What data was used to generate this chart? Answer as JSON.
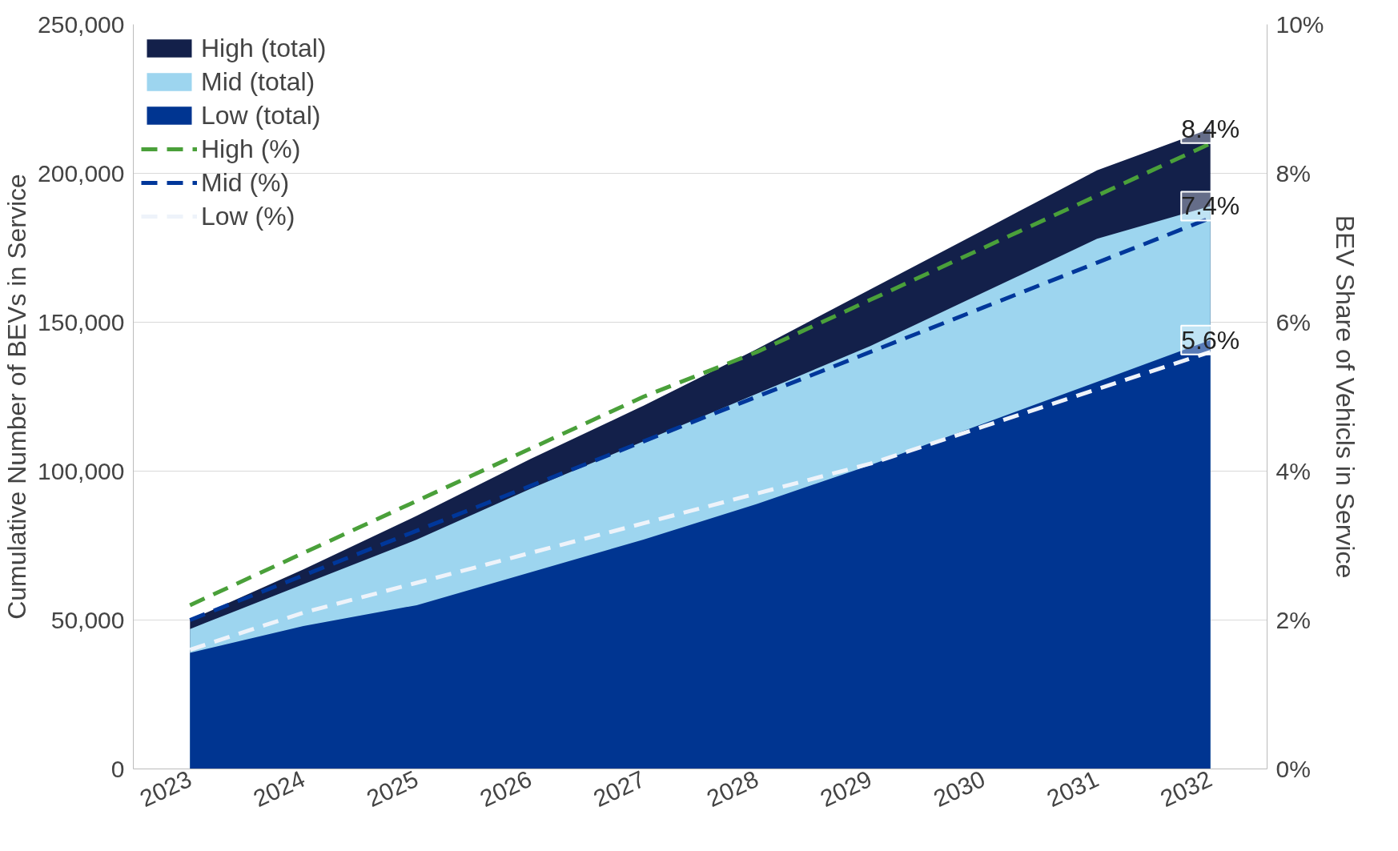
{
  "chart_data": {
    "type": "area",
    "categories": [
      "2023",
      "2024",
      "2025",
      "2026",
      "2027",
      "2028",
      "2029",
      "2030",
      "2031",
      "2032"
    ],
    "ylabel": "Cumulative Number of BEVs in Service",
    "y2label": "BEV Share of Vehicls in Service",
    "ylim": [
      0,
      250000
    ],
    "yticks": [
      {
        "value": 0,
        "label": "0"
      },
      {
        "value": 50000,
        "label": "50,000"
      },
      {
        "value": 100000,
        "label": "100,000"
      },
      {
        "value": 150000,
        "label": "150,000"
      },
      {
        "value": 200000,
        "label": "200,000"
      },
      {
        "value": 250000,
        "label": "250,000"
      }
    ],
    "y2lim": [
      0,
      10
    ],
    "y2ticks": [
      {
        "value": 0,
        "label": "0%"
      },
      {
        "value": 2,
        "label": "2%"
      },
      {
        "value": 4,
        "label": "4%"
      },
      {
        "value": 6,
        "label": "6%"
      },
      {
        "value": 8,
        "label": "8%"
      },
      {
        "value": 10,
        "label": "10%"
      }
    ],
    "series": [
      {
        "name": "High (total)",
        "color": "#13204a",
        "values": [
          50000,
          67000,
          85000,
          104000,
          122000,
          141000,
          161000,
          181000,
          201000,
          215000
        ]
      },
      {
        "name": "Mid (total)",
        "color": "#9dd5ef",
        "values": [
          47000,
          62000,
          77000,
          94000,
          110000,
          126000,
          142000,
          160000,
          178000,
          189000
        ]
      },
      {
        "name": "Low (total)",
        "color": "#003591",
        "values": [
          39000,
          48000,
          55000,
          66000,
          77000,
          89000,
          102000,
          116000,
          130000,
          144000
        ]
      },
      {
        "name": "High (%)",
        "type": "line",
        "axis": "y2",
        "line_style": "dashed",
        "color": "#4aa03a",
        "values": [
          2.2,
          2.9,
          3.6,
          4.3,
          5.0,
          5.6,
          6.3,
          7.0,
          7.7,
          8.4
        ]
      },
      {
        "name": "Mid (%)",
        "type": "line",
        "axis": "y2",
        "line_style": "dashed",
        "color": "#00379a",
        "values": [
          2.0,
          2.6,
          3.2,
          3.8,
          4.4,
          5.0,
          5.6,
          6.2,
          6.8,
          7.4
        ]
      },
      {
        "name": "Low (%)",
        "type": "line",
        "axis": "y2",
        "line_style": "dashed",
        "color": "#eef3fa",
        "values": [
          1.6,
          2.1,
          2.5,
          2.9,
          3.3,
          3.7,
          4.1,
          4.6,
          5.1,
          5.6
        ]
      }
    ],
    "annotations": [
      {
        "text": "8.4%",
        "x": "2032",
        "y": 215000
      },
      {
        "text": "7.4%",
        "x": "2032",
        "y": 189000
      },
      {
        "text": "5.6%",
        "x": "2032",
        "y": 144000
      }
    ],
    "grid": "y",
    "legend": "top left"
  }
}
